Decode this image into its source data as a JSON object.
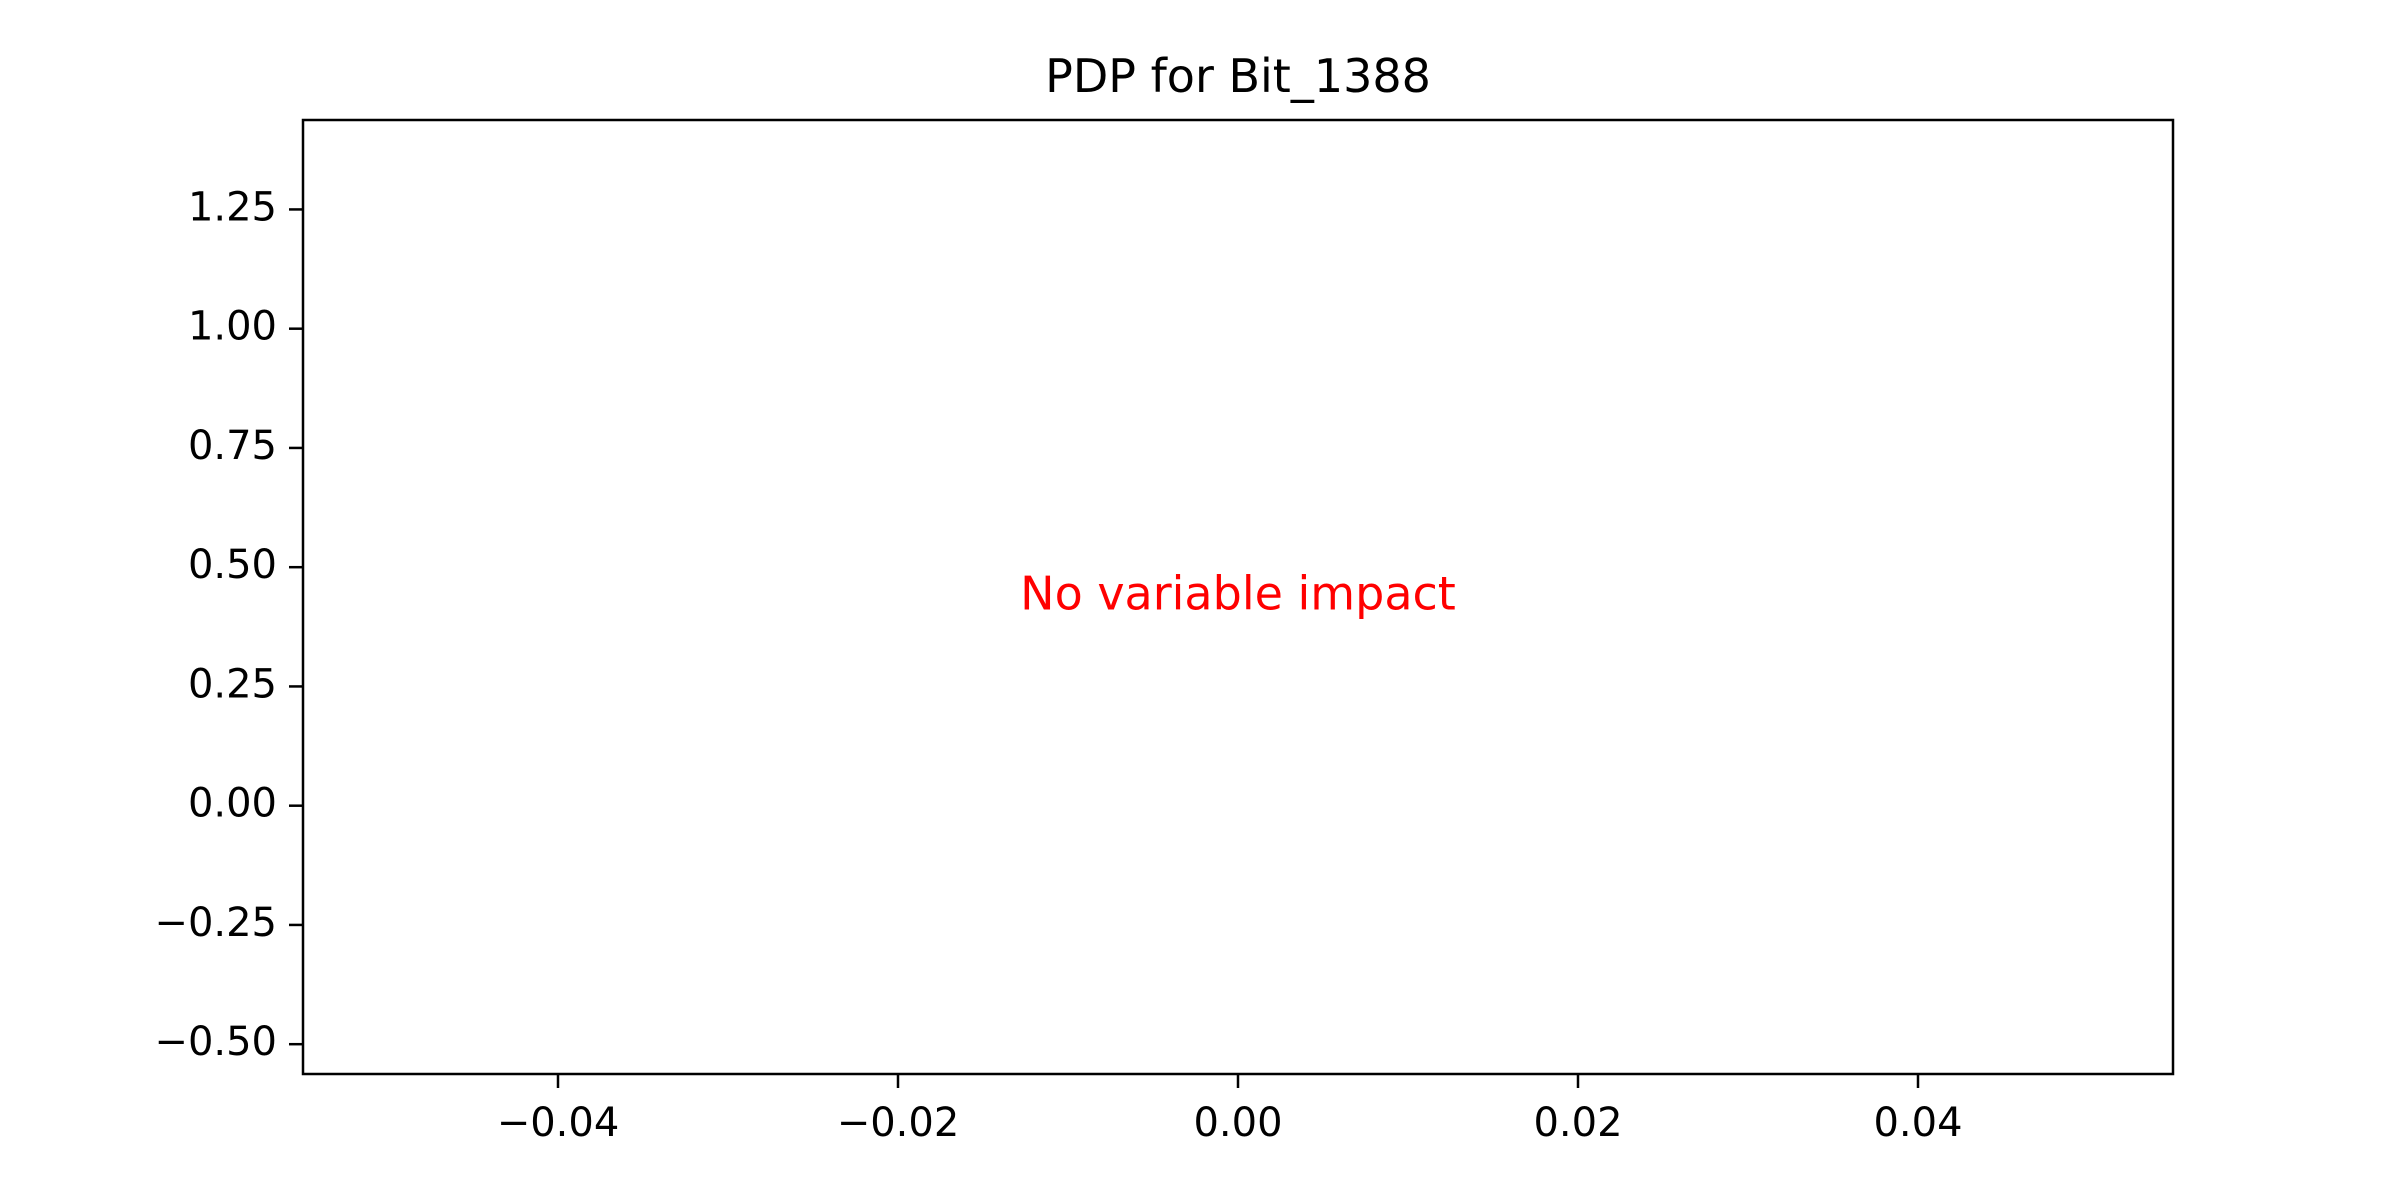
{
  "chart_data": {
    "type": "line",
    "title": "PDP for Bit_1388",
    "xlabel": "",
    "ylabel": "",
    "xlim": [
      -0.055,
      0.055
    ],
    "ylim": [
      -0.5625,
      1.4375
    ],
    "xticks": [
      -0.04,
      -0.02,
      0.0,
      0.02,
      0.04
    ],
    "xtick_labels": [
      "−0.04",
      "−0.02",
      "0.00",
      "0.02",
      "0.04"
    ],
    "yticks": [
      -0.5,
      -0.25,
      0.0,
      0.25,
      0.5,
      0.75,
      1.0,
      1.25
    ],
    "ytick_labels": [
      "−0.50",
      "−0.25",
      "0.00",
      "0.25",
      "0.50",
      "0.75",
      "1.00",
      "1.25"
    ],
    "series": [],
    "grid": false,
    "annotation": {
      "text": "No variable impact",
      "x": 0.0,
      "y": 0.4375,
      "color": "#ff0000"
    }
  }
}
